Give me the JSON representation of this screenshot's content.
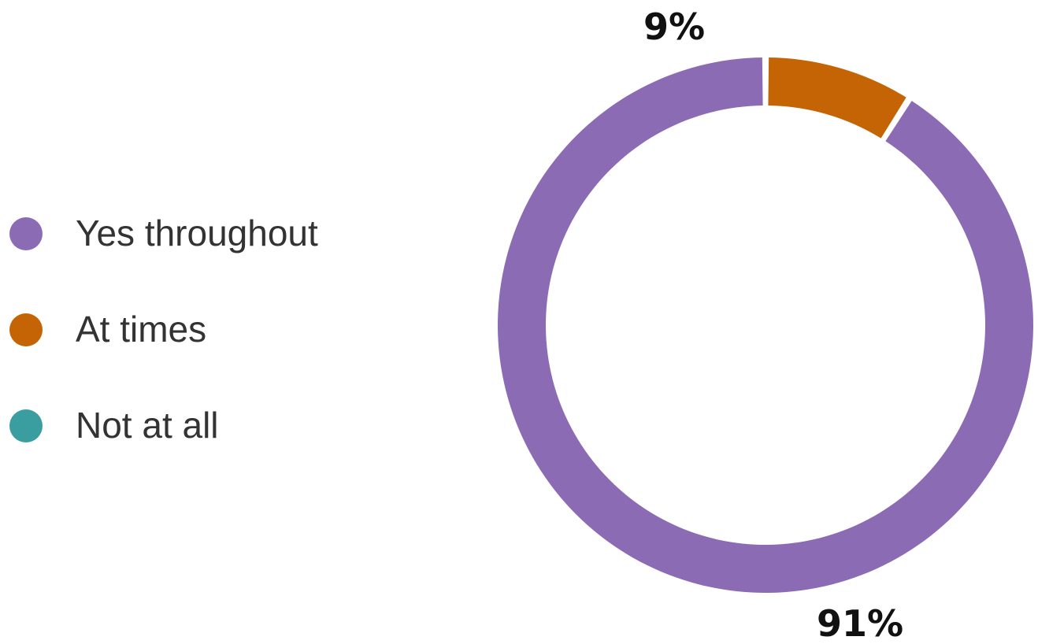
{
  "chart_data": {
    "type": "pie",
    "variant": "donut",
    "categories": [
      "Yes throughout",
      "At times",
      "Not at all"
    ],
    "values": [
      91,
      9,
      0
    ],
    "value_labels": [
      "91%",
      "9%",
      ""
    ],
    "colors": [
      "#8C6BB5",
      "#C46404",
      "#3A9EA0"
    ],
    "legend_position": "left",
    "title": "",
    "start_angle": "top, clockwise"
  },
  "legend": {
    "items": [
      {
        "label": "Yes throughout",
        "color": "#8C6BB5"
      },
      {
        "label": "At times",
        "color": "#C46404"
      },
      {
        "label": "Not at all",
        "color": "#3A9EA0"
      }
    ]
  }
}
